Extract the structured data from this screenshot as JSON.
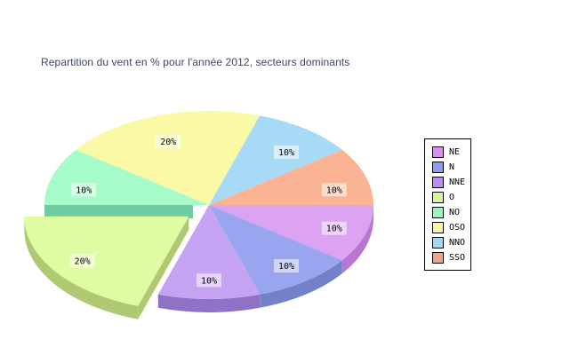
{
  "chart_data": {
    "type": "pie",
    "style": "3d-exploded",
    "title": "Repartition du vent en % pour l'année 2012, secteurs dominants",
    "title_color": "#3D4663",
    "unit": "%",
    "legend_position": "right",
    "legend_border_color": "#000000",
    "label_bg": "rgba(255,255,255,0.55)",
    "label_text_color": "#000000",
    "background": "#FFFFFF",
    "slices": [
      {
        "label": "NE",
        "value": 10,
        "display": "10%",
        "start_angle": 324,
        "end_angle": 360,
        "color": "#DBA3F2",
        "side_color": "#B875D2",
        "legend_color": "#DC8EF0",
        "exploded": false
      },
      {
        "label": "N",
        "value": 10,
        "display": "10%",
        "start_angle": 288,
        "end_angle": 324,
        "color": "#9AA5F0",
        "side_color": "#7381C9",
        "legend_color": "#8E99F0",
        "exploded": false
      },
      {
        "label": "NNE",
        "value": 10,
        "display": "10%",
        "start_angle": 252,
        "end_angle": 288,
        "color": "#C6A3F2",
        "side_color": "#8F72C6",
        "legend_color": "#BC8EF0",
        "exploded": false
      },
      {
        "label": "O",
        "value": 20,
        "display": "20%",
        "start_angle": 180,
        "end_angle": 252,
        "color": "#E0FCA3",
        "side_color": "#AFC973",
        "legend_color": "#D8F595",
        "exploded": true
      },
      {
        "label": "NO",
        "value": 10,
        "display": "10%",
        "start_angle": 144,
        "end_angle": 180,
        "color": "#A6FCC9",
        "side_color": "#70CBA0",
        "legend_color": "#9DF2C3",
        "exploded": false
      },
      {
        "label": "OSO",
        "value": 20,
        "display": "20%",
        "start_angle": 72,
        "end_angle": 144,
        "color": "#FAFAA6",
        "side_color": "#C8C87D",
        "legend_color": "#F5F59C",
        "exploded": false
      },
      {
        "label": "NNO",
        "value": 10,
        "display": "10%",
        "start_angle": 36,
        "end_angle": 72,
        "color": "#A7DAF7",
        "side_color": "#7FAFD0",
        "legend_color": "#A3D6F2",
        "exploded": false
      },
      {
        "label": "SSO",
        "value": 10,
        "display": "10%",
        "start_angle": 0,
        "end_angle": 36,
        "color": "#FAB494",
        "side_color": "#D2825F",
        "legend_color": "#F2A285",
        "exploded": false
      }
    ]
  }
}
